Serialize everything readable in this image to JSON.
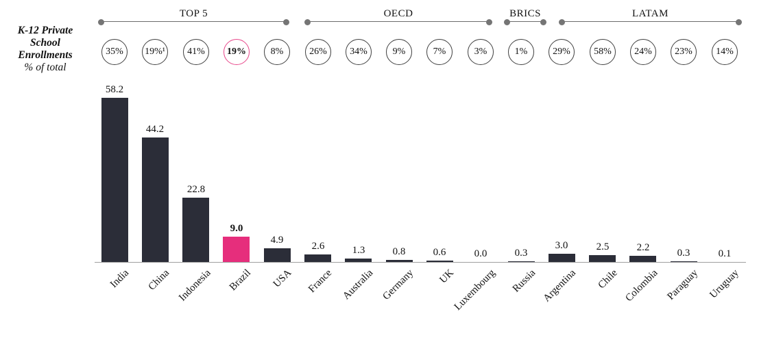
{
  "title": {
    "lines": [
      "K-12 Private",
      "School",
      "Enrollments"
    ],
    "subtitle": "% of total"
  },
  "chart_data": {
    "type": "bar",
    "title": "K-12 Private School Enrollments",
    "subtitle": "% of total",
    "categories": [
      "India",
      "China",
      "Indonesia",
      "Brazil",
      "USA",
      "France",
      "Australia",
      "Germany",
      "UK",
      "Luxembourg",
      "Russia",
      "Argentina",
      "Chile",
      "Colombia",
      "Paraguay",
      "Uruguay"
    ],
    "values": [
      58.2,
      44.2,
      22.8,
      9.0,
      4.9,
      2.6,
      1.3,
      0.8,
      0.6,
      0.0,
      0.3,
      3.0,
      2.5,
      2.2,
      0.3,
      0.1
    ],
    "enrollment_pcts": [
      "35%",
      "19%¹",
      "41%",
      "19%",
      "8%",
      "26%",
      "34%",
      "9%",
      "7%",
      "3%",
      "1%",
      "29%",
      "58%",
      "24%",
      "23%",
      "14%"
    ],
    "groups": [
      {
        "label": "TOP 5",
        "start": 0,
        "end": 4
      },
      {
        "label": "OECD",
        "start": 5,
        "end": 9
      },
      {
        "label": "BRICS",
        "start": 10,
        "end": 10
      },
      {
        "label": "LATAM",
        "start": 11,
        "end": 15
      }
    ],
    "highlight_index": 3,
    "highlight_category": "Brazil",
    "colors": {
      "bar": "#2b2d38",
      "highlight": "#e62e7c",
      "axis": "#9e9e9e",
      "bracket_line": "#6b6b6b",
      "bracket_dot": "#757575",
      "circle_border": "#3f3f3f"
    },
    "ylim": [
      0,
      60
    ],
    "grid": false,
    "legend": false,
    "value_labels_shown": true,
    "xlabel_rotation_deg": -45
  }
}
